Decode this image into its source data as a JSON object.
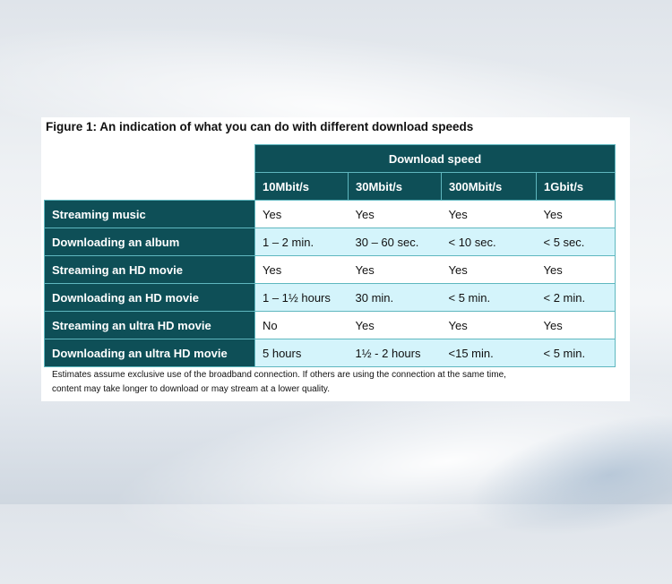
{
  "figure": {
    "title": "Figure 1: An indication of what you can do with different download speeds"
  },
  "table": {
    "group_header": "Download speed",
    "columns": [
      "10Mbit/s",
      "30Mbit/s",
      "300Mbit/s",
      "1Gbit/s"
    ],
    "rows": [
      {
        "label": "Streaming music",
        "values": [
          "Yes",
          "Yes",
          "Yes",
          "Yes"
        ]
      },
      {
        "label": "Downloading an album",
        "values": [
          "1 – 2 min.",
          "30 – 60 sec.",
          "< 10 sec.",
          "< 5 sec."
        ]
      },
      {
        "label": "Streaming an HD movie",
        "values": [
          "Yes",
          "Yes",
          "Yes",
          "Yes"
        ]
      },
      {
        "label": "Downloading an HD movie",
        "values": [
          "1 – 1½ hours",
          "30 min.",
          "< 5 min.",
          "< 2 min."
        ]
      },
      {
        "label": "Streaming an ultra HD movie",
        "values": [
          "No",
          "Yes",
          "Yes",
          "Yes"
        ]
      },
      {
        "label": "Downloading an ultra HD movie",
        "values": [
          "5 hours",
          "1½ - 2 hours",
          "<15 min.",
          "< 5 min."
        ]
      }
    ]
  },
  "footnote": {
    "line1": "Estimates assume exclusive use of the broadband connection. If others are using the connection at the same time,",
    "line2": "content may take longer to download or may stream at a lower quality."
  },
  "colors": {
    "header_bg": "#0e4f57",
    "alt_row_bg": "#d4f4fb",
    "border": "#5fb7bf"
  }
}
